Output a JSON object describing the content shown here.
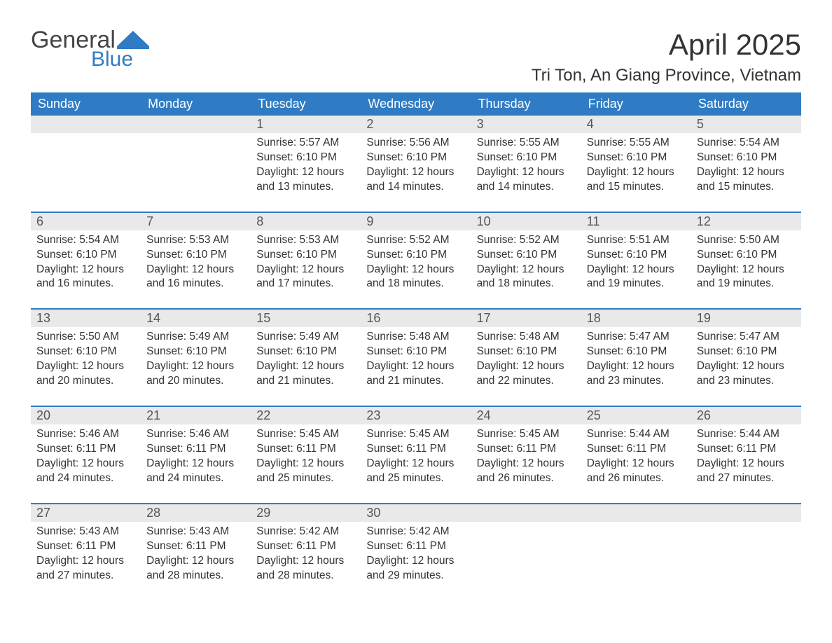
{
  "logo": {
    "word1": "General",
    "word2": "Blue",
    "text_color": "#444444",
    "accent_color": "#2f7cc4"
  },
  "title": "April 2025",
  "location": "Tri Ton, An Giang Province, Vietnam",
  "colors": {
    "header_bg": "#2f7cc4",
    "header_text": "#ffffff",
    "daynum_bg": "#e9e9e9",
    "body_text": "#333333",
    "rule": "#2f7cc4",
    "page_bg": "#ffffff"
  },
  "fonts": {
    "title_size_pt": 32,
    "location_size_pt": 18,
    "dow_size_pt": 14,
    "cell_size_pt": 12
  },
  "labels": {
    "sunrise": "Sunrise:",
    "sunset": "Sunset:",
    "daylight": "Daylight:"
  },
  "days_of_week": [
    "Sunday",
    "Monday",
    "Tuesday",
    "Wednesday",
    "Thursday",
    "Friday",
    "Saturday"
  ],
  "first_weekday_index": 2,
  "days": [
    {
      "n": 1,
      "sunrise": "5:57 AM",
      "sunset": "6:10 PM",
      "daylight": "12 hours and 13 minutes."
    },
    {
      "n": 2,
      "sunrise": "5:56 AM",
      "sunset": "6:10 PM",
      "daylight": "12 hours and 14 minutes."
    },
    {
      "n": 3,
      "sunrise": "5:55 AM",
      "sunset": "6:10 PM",
      "daylight": "12 hours and 14 minutes."
    },
    {
      "n": 4,
      "sunrise": "5:55 AM",
      "sunset": "6:10 PM",
      "daylight": "12 hours and 15 minutes."
    },
    {
      "n": 5,
      "sunrise": "5:54 AM",
      "sunset": "6:10 PM",
      "daylight": "12 hours and 15 minutes."
    },
    {
      "n": 6,
      "sunrise": "5:54 AM",
      "sunset": "6:10 PM",
      "daylight": "12 hours and 16 minutes."
    },
    {
      "n": 7,
      "sunrise": "5:53 AM",
      "sunset": "6:10 PM",
      "daylight": "12 hours and 16 minutes."
    },
    {
      "n": 8,
      "sunrise": "5:53 AM",
      "sunset": "6:10 PM",
      "daylight": "12 hours and 17 minutes."
    },
    {
      "n": 9,
      "sunrise": "5:52 AM",
      "sunset": "6:10 PM",
      "daylight": "12 hours and 18 minutes."
    },
    {
      "n": 10,
      "sunrise": "5:52 AM",
      "sunset": "6:10 PM",
      "daylight": "12 hours and 18 minutes."
    },
    {
      "n": 11,
      "sunrise": "5:51 AM",
      "sunset": "6:10 PM",
      "daylight": "12 hours and 19 minutes."
    },
    {
      "n": 12,
      "sunrise": "5:50 AM",
      "sunset": "6:10 PM",
      "daylight": "12 hours and 19 minutes."
    },
    {
      "n": 13,
      "sunrise": "5:50 AM",
      "sunset": "6:10 PM",
      "daylight": "12 hours and 20 minutes."
    },
    {
      "n": 14,
      "sunrise": "5:49 AM",
      "sunset": "6:10 PM",
      "daylight": "12 hours and 20 minutes."
    },
    {
      "n": 15,
      "sunrise": "5:49 AM",
      "sunset": "6:10 PM",
      "daylight": "12 hours and 21 minutes."
    },
    {
      "n": 16,
      "sunrise": "5:48 AM",
      "sunset": "6:10 PM",
      "daylight": "12 hours and 21 minutes."
    },
    {
      "n": 17,
      "sunrise": "5:48 AM",
      "sunset": "6:10 PM",
      "daylight": "12 hours and 22 minutes."
    },
    {
      "n": 18,
      "sunrise": "5:47 AM",
      "sunset": "6:10 PM",
      "daylight": "12 hours and 23 minutes."
    },
    {
      "n": 19,
      "sunrise": "5:47 AM",
      "sunset": "6:10 PM",
      "daylight": "12 hours and 23 minutes."
    },
    {
      "n": 20,
      "sunrise": "5:46 AM",
      "sunset": "6:11 PM",
      "daylight": "12 hours and 24 minutes."
    },
    {
      "n": 21,
      "sunrise": "5:46 AM",
      "sunset": "6:11 PM",
      "daylight": "12 hours and 24 minutes."
    },
    {
      "n": 22,
      "sunrise": "5:45 AM",
      "sunset": "6:11 PM",
      "daylight": "12 hours and 25 minutes."
    },
    {
      "n": 23,
      "sunrise": "5:45 AM",
      "sunset": "6:11 PM",
      "daylight": "12 hours and 25 minutes."
    },
    {
      "n": 24,
      "sunrise": "5:45 AM",
      "sunset": "6:11 PM",
      "daylight": "12 hours and 26 minutes."
    },
    {
      "n": 25,
      "sunrise": "5:44 AM",
      "sunset": "6:11 PM",
      "daylight": "12 hours and 26 minutes."
    },
    {
      "n": 26,
      "sunrise": "5:44 AM",
      "sunset": "6:11 PM",
      "daylight": "12 hours and 27 minutes."
    },
    {
      "n": 27,
      "sunrise": "5:43 AM",
      "sunset": "6:11 PM",
      "daylight": "12 hours and 27 minutes."
    },
    {
      "n": 28,
      "sunrise": "5:43 AM",
      "sunset": "6:11 PM",
      "daylight": "12 hours and 28 minutes."
    },
    {
      "n": 29,
      "sunrise": "5:42 AM",
      "sunset": "6:11 PM",
      "daylight": "12 hours and 28 minutes."
    },
    {
      "n": 30,
      "sunrise": "5:42 AM",
      "sunset": "6:11 PM",
      "daylight": "12 hours and 29 minutes."
    }
  ]
}
